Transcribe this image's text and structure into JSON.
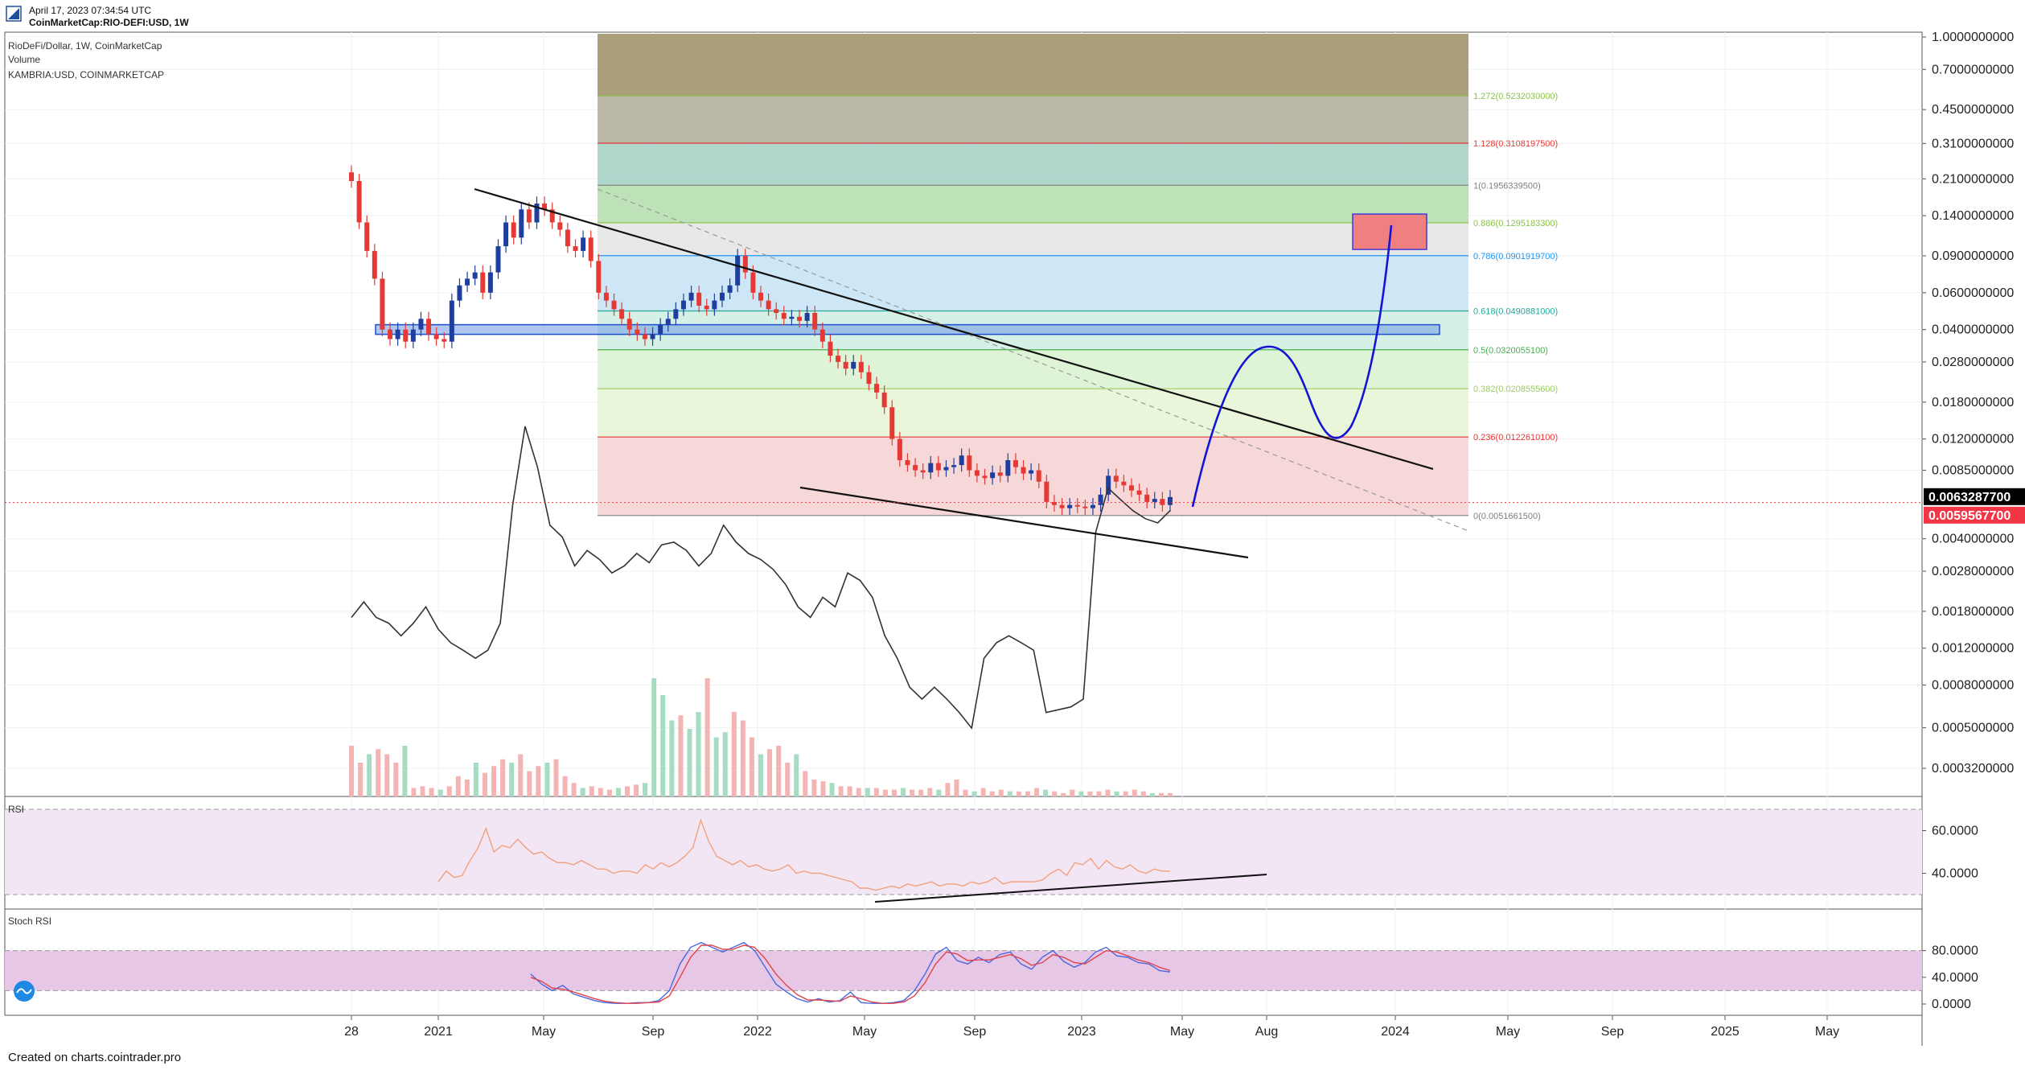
{
  "header": {
    "timestamp": "April 17, 2023 07:34:54 UTC",
    "symbol_line": "CoinMarketCap:RIO-DEFI:USD, 1W"
  },
  "legend": {
    "main": "RioDeFi/Dollar, 1W, CoinMarketCap",
    "volume": "Volume",
    "compare": "KAMBRIA:USD, COINMARKETCAP"
  },
  "footer": {
    "text": "Created on charts.cointrader.pro"
  },
  "colors": {
    "bullish": "#1e3fa0",
    "bearish": "#e53935",
    "trendline": "#111111",
    "projection": "#1414d6",
    "rsi_line": "#f2a07b",
    "stoch_k": "#4a66e0",
    "stoch_d": "#e0434b",
    "last_price_bg": "#f23645",
    "current_price_bg": "#000000"
  },
  "chart_data": [
    {
      "type": "candlestick",
      "title": "RioDeFi/Dollar, 1W, CoinMarketCap",
      "scale": "log",
      "price_axis_labels": [
        "1.0000000000",
        "0.7000000000",
        "0.4500000000",
        "0.3100000000",
        "0.2100000000",
        "0.1400000000",
        "0.0900000000",
        "0.0600000000",
        "0.0400000000",
        "0.0280000000",
        "0.0180000000",
        "0.0120000000",
        "0.0085000000",
        "0.0040000000",
        "0.0028000000",
        "0.0018000000",
        "0.0012000000",
        "0.0008000000",
        "0.0005000000",
        "0.0003200000"
      ],
      "time_axis_labels": [
        "28",
        "2021",
        "May",
        "Sep",
        "2022",
        "May",
        "Sep",
        "2023",
        "May",
        "Aug",
        "2024",
        "May",
        "Sep",
        "2025",
        "May"
      ],
      "current_price_label": "0.0063287700",
      "last_price_label": "0.0059567700",
      "fibonacci_levels": [
        {
          "label": "1.272(0.5232030000)",
          "value": 0.523203,
          "color": "#8bc34a"
        },
        {
          "label": "1.128(0.3108197500)",
          "value": 0.31081975,
          "color": "#e53935"
        },
        {
          "label": "1(0.1956339500)",
          "value": 0.19563395,
          "color": "#808080"
        },
        {
          "label": "0.886(0.1295183300)",
          "value": 0.12951833,
          "color": "#8bc34a"
        },
        {
          "label": "0.786(0.0901919700)",
          "value": 0.09019197,
          "color": "#2196f3"
        },
        {
          "label": "0.618(0.0490881000)",
          "value": 0.0490881,
          "color": "#26a69a"
        },
        {
          "label": "0.5(0.0320055100)",
          "value": 0.03200551,
          "color": "#4caf50"
        },
        {
          "label": "0.382(0.0208555600)",
          "value": 0.02085556,
          "color": "#9ccc65"
        },
        {
          "label": "0.236(0.0122610100)",
          "value": 0.01226101,
          "color": "#e53935"
        },
        {
          "label": "0(0.0051661500)",
          "value": 0.00516615,
          "color": "#808080"
        }
      ],
      "price_series_weekly": [
        0.205,
        0.13,
        0.095,
        0.07,
        0.04,
        0.036,
        0.04,
        0.035,
        0.04,
        0.045,
        0.038,
        0.036,
        0.035,
        0.055,
        0.065,
        0.07,
        0.075,
        0.06,
        0.075,
        0.1,
        0.13,
        0.11,
        0.15,
        0.13,
        0.16,
        0.15,
        0.13,
        0.12,
        0.1,
        0.095,
        0.11,
        0.085,
        0.06,
        0.055,
        0.05,
        0.045,
        0.04,
        0.038,
        0.036,
        0.038,
        0.042,
        0.045,
        0.05,
        0.055,
        0.06,
        0.052,
        0.05,
        0.055,
        0.06,
        0.065,
        0.09,
        0.075,
        0.06,
        0.055,
        0.05,
        0.048,
        0.045,
        0.046,
        0.044,
        0.048,
        0.04,
        0.035,
        0.03,
        0.028,
        0.026,
        0.028,
        0.025,
        0.022,
        0.02,
        0.017,
        0.012,
        0.0095,
        0.009,
        0.0085,
        0.0083,
        0.0092,
        0.0085,
        0.0088,
        0.009,
        0.01,
        0.0085,
        0.008,
        0.0078,
        0.0083,
        0.008,
        0.0095,
        0.0088,
        0.0082,
        0.0085,
        0.0075,
        0.006,
        0.0058,
        0.0056,
        0.0058,
        0.0057,
        0.0056,
        0.0058,
        0.0065,
        0.008,
        0.0075,
        0.0072,
        0.0068,
        0.0065,
        0.006,
        0.0062,
        0.0058,
        0.00633
      ],
      "compare_series_kambria": [
        0.0018,
        0.0021,
        0.0018,
        0.0017,
        0.0015,
        0.0017,
        0.002,
        0.0016,
        0.0014,
        0.0013,
        0.0012,
        0.0013,
        0.0017,
        0.0055,
        0.012,
        0.008,
        0.0045,
        0.004,
        0.003,
        0.0035,
        0.0032,
        0.0028,
        0.003,
        0.0034,
        0.0031,
        0.0037,
        0.0038,
        0.0035,
        0.003,
        0.0034,
        0.0045,
        0.0038,
        0.0034,
        0.0032,
        0.0029,
        0.0025,
        0.002,
        0.0018,
        0.0022,
        0.002,
        0.0028,
        0.0026,
        0.0022,
        0.0015,
        0.0012,
        0.0009,
        0.0008,
        0.0009,
        0.0008,
        0.0007,
        0.0006,
        0.0012,
        0.0014,
        0.0015,
        0.0014,
        0.0013,
        0.0007,
        0.00072,
        0.00074,
        0.0008,
        0.0042,
        0.0065,
        0.0058,
        0.0052,
        0.0048,
        0.0046,
        0.0052
      ],
      "volume_relative": [
        0.3,
        0.2,
        0.25,
        0.28,
        0.25,
        0.2,
        0.3,
        0.05,
        0.06,
        0.05,
        0.04,
        0.06,
        0.12,
        0.1,
        0.2,
        0.14,
        0.18,
        0.22,
        0.2,
        0.25,
        0.15,
        0.18,
        0.2,
        0.22,
        0.12,
        0.08,
        0.05,
        0.06,
        0.05,
        0.04,
        0.05,
        0.06,
        0.07,
        0.08,
        0.7,
        0.6,
        0.45,
        0.48,
        0.4,
        0.5,
        0.7,
        0.35,
        0.38,
        0.5,
        0.45,
        0.35,
        0.25,
        0.28,
        0.3,
        0.2,
        0.25,
        0.15,
        0.1,
        0.09,
        0.08,
        0.06,
        0.06,
        0.05,
        0.05,
        0.05,
        0.04,
        0.04,
        0.05,
        0.04,
        0.04,
        0.05,
        0.04,
        0.08,
        0.1,
        0.04,
        0.03,
        0.05,
        0.03,
        0.04,
        0.03,
        0.03,
        0.03,
        0.05,
        0.04,
        0.03,
        0.02,
        0.04,
        0.03,
        0.03,
        0.03,
        0.04,
        0.03,
        0.03,
        0.04,
        0.03,
        0.02,
        0.02,
        0.02
      ]
    },
    {
      "type": "line",
      "title": "RSI",
      "scale_labels": [
        "60.0000",
        "40.0000"
      ],
      "bands": [
        30,
        70
      ],
      "values": [
        36,
        41,
        38,
        39,
        46,
        52,
        61,
        50,
        53,
        52,
        56,
        52,
        49,
        50,
        47,
        45,
        45,
        44,
        46,
        44,
        42,
        42,
        40,
        41,
        41,
        40,
        44,
        42,
        45,
        43,
        45,
        48,
        52,
        65,
        55,
        48,
        46,
        44,
        46,
        43,
        44,
        42,
        41,
        42,
        44,
        40,
        41,
        40,
        40,
        39,
        38,
        37,
        36,
        33,
        33,
        32,
        33,
        34,
        33,
        35,
        34,
        35,
        36,
        34,
        35,
        35,
        34,
        36,
        35,
        36,
        38,
        35,
        36,
        36,
        36,
        36,
        37,
        40,
        42,
        39,
        45,
        44,
        47,
        42,
        46,
        43,
        42,
        44,
        41,
        40,
        42,
        41,
        41
      ]
    },
    {
      "type": "line",
      "title": "Stoch RSI",
      "scale_labels": [
        "80.0000",
        "40.0000",
        "0.0000"
      ],
      "bands": [
        20,
        80
      ],
      "series": [
        {
          "values": [
            45,
            30,
            20,
            28,
            15,
            10,
            5,
            2,
            1,
            1,
            2,
            2,
            5,
            20,
            60,
            85,
            92,
            85,
            78,
            85,
            92,
            80,
            55,
            30,
            18,
            8,
            3,
            8,
            3,
            5,
            18,
            2,
            1,
            1,
            2,
            5,
            20,
            45,
            75,
            85,
            65,
            60,
            70,
            62,
            74,
            78,
            60,
            52,
            70,
            80,
            64,
            55,
            62,
            78,
            85,
            72,
            70,
            62,
            60,
            50,
            48
          ]
        },
        {
          "values": [
            40,
            34,
            24,
            22,
            18,
            13,
            8,
            4,
            2,
            1,
            1,
            2,
            3,
            12,
            40,
            70,
            88,
            88,
            82,
            82,
            88,
            85,
            68,
            45,
            28,
            14,
            6,
            6,
            5,
            4,
            12,
            8,
            3,
            1,
            1,
            3,
            12,
            32,
            60,
            78,
            75,
            65,
            66,
            66,
            70,
            74,
            68,
            58,
            62,
            74,
            70,
            62,
            60,
            70,
            80,
            78,
            72,
            66,
            62,
            55,
            50
          ]
        }
      ]
    }
  ],
  "drawing_projection": {
    "description_points": "hand-drawn projected path"
  }
}
